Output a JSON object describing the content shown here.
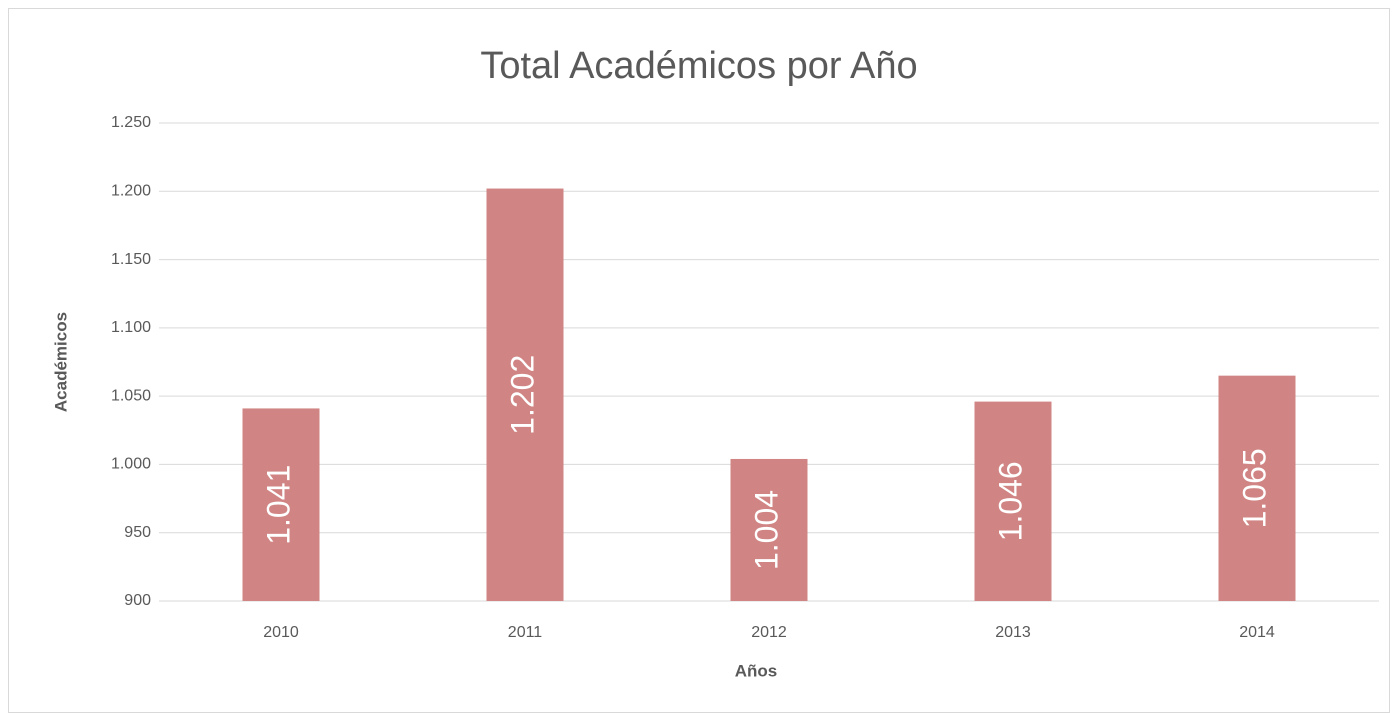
{
  "chart_data": {
    "type": "bar",
    "title": "Total Académicos por Año",
    "x_label": "Años",
    "y_label": "Académicos",
    "categories": [
      "2010",
      "2011",
      "2012",
      "2013",
      "2014"
    ],
    "values": [
      1041,
      1202,
      1004,
      1046,
      1065
    ],
    "value_labels": [
      "1.041",
      "1.202",
      "1.004",
      "1.046",
      "1.065"
    ],
    "color": "#d08483",
    "ylim": [
      900,
      1250
    ],
    "yticks": [
      900,
      {
        "value": 950,
        "label": "950"
      },
      {
        "value": 1000,
        "label": "1.000"
      },
      {
        "value": 1050,
        "label": "1.050"
      },
      {
        "value": 1100,
        "label": "1.100"
      },
      {
        "value": 1150,
        "label": "1.150"
      },
      {
        "value": 1200,
        "label": "1.200"
      },
      {
        "value": 1250,
        "label": "1.250"
      }
    ],
    "grid": true
  }
}
